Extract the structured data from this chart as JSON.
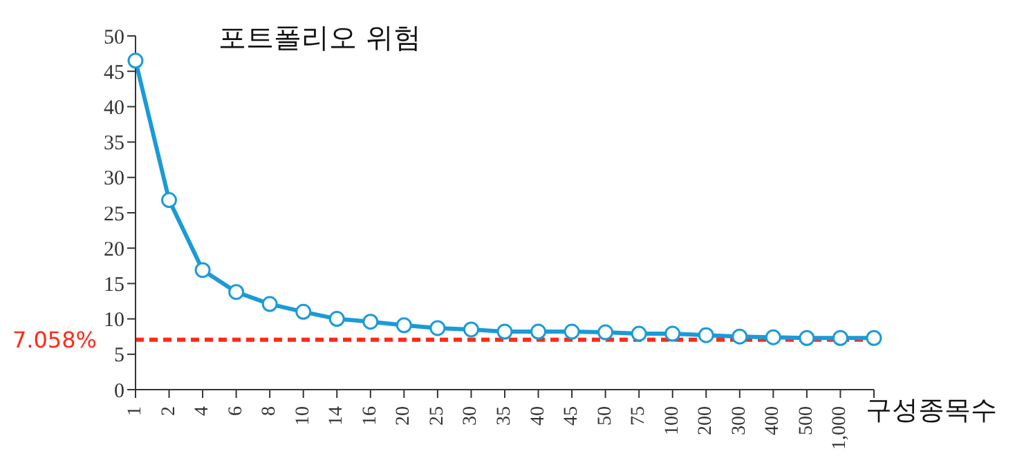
{
  "chart_data": {
    "type": "line",
    "title": "포트폴리오 위험",
    "xlabel": "구성종목수",
    "categories": [
      "1",
      "2",
      "4",
      "6",
      "8",
      "10",
      "14",
      "16",
      "20",
      "25",
      "30",
      "35",
      "40",
      "45",
      "50",
      "75",
      "100",
      "200",
      "300",
      "400",
      "500",
      "1,000",
      null
    ],
    "series": [
      {
        "color": "#1a9bd7",
        "values": [
          46.5,
          26.8,
          16.9,
          13.8,
          12.1,
          11.0,
          10.0,
          9.6,
          9.1,
          8.7,
          8.5,
          8.2,
          8.2,
          8.2,
          8.1,
          7.9,
          7.9,
          7.7,
          7.5,
          7.4,
          7.3,
          7.3,
          7.3
        ]
      }
    ],
    "ylim": [
      0,
      50
    ],
    "yticks": [
      0,
      5,
      10,
      15,
      20,
      25,
      30,
      35,
      40,
      45,
      50
    ],
    "ref_lines": [
      {
        "axis": "y",
        "value": 7.058,
        "label": "7.058%",
        "color": "#ff2a1a",
        "line_style": "dashed"
      }
    ],
    "grid": false,
    "legend": false,
    "marker": "circle",
    "line_style": "solid"
  }
}
